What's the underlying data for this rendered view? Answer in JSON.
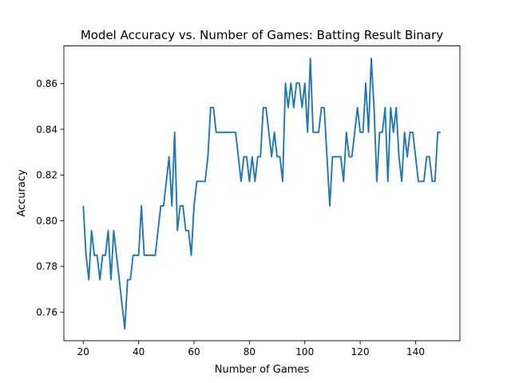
{
  "chart_data": {
    "type": "line",
    "title": "Model Accuracy vs. Number of Games: Batting Result Binary",
    "xlabel": "Number of Games",
    "ylabel": "Accuracy",
    "xlim": [
      13,
      156
    ],
    "ylim": [
      0.7475,
      0.8765
    ],
    "xticks": [
      20,
      40,
      60,
      80,
      100,
      120,
      140
    ],
    "yticks": [
      0.76,
      0.78,
      0.8,
      0.82,
      0.84,
      0.86
    ],
    "ytick_labels": [
      "0.76",
      "0.78",
      "0.80",
      "0.82",
      "0.84",
      "0.86"
    ],
    "grid": false,
    "line_color": "#1f77b4",
    "series": [
      {
        "x": [
          20,
          21,
          22,
          23,
          24,
          25,
          26,
          27,
          28,
          29,
          30,
          31,
          32,
          33,
          34,
          35,
          36,
          37,
          38,
          39,
          40,
          41,
          42,
          43,
          44,
          45,
          46,
          47,
          48,
          49,
          50,
          51,
          52,
          53,
          54,
          55,
          56,
          57,
          58,
          59,
          60,
          61,
          62,
          63,
          64,
          65,
          66,
          67,
          68,
          69,
          70,
          71,
          72,
          73,
          74,
          75,
          76,
          77,
          78,
          79,
          80,
          81,
          82,
          83,
          84,
          85,
          86,
          87,
          88,
          89,
          90,
          91,
          92,
          93,
          94,
          95,
          96,
          97,
          98,
          99,
          100,
          101,
          102,
          103,
          104,
          105,
          106,
          107,
          108,
          109,
          110,
          111,
          112,
          113,
          114,
          115,
          116,
          117,
          118,
          119,
          120,
          121,
          122,
          123,
          124,
          125,
          126,
          127,
          128,
          129,
          130,
          131,
          132,
          133,
          134,
          135,
          136,
          137,
          138,
          139,
          140,
          141,
          142,
          143,
          144,
          145,
          146,
          147,
          148,
          149
        ],
        "y": [
          0.8065,
          0.7849,
          0.7742,
          0.7957,
          0.7849,
          0.7849,
          0.7742,
          0.7849,
          0.7849,
          0.7957,
          0.7742,
          0.7957,
          0.7849,
          0.7742,
          0.7634,
          0.7527,
          0.7742,
          0.7742,
          0.7849,
          0.7849,
          0.7849,
          0.8065,
          0.7849,
          0.7849,
          0.7849,
          0.7849,
          0.7849,
          0.7957,
          0.8065,
          0.8065,
          0.8172,
          0.828,
          0.8065,
          0.8387,
          0.7957,
          0.8065,
          0.8065,
          0.7957,
          0.7957,
          0.7849,
          0.8065,
          0.8172,
          0.8172,
          0.8172,
          0.8172,
          0.828,
          0.8495,
          0.8495,
          0.8387,
          0.8387,
          0.8387,
          0.8387,
          0.8387,
          0.8387,
          0.8387,
          0.8387,
          0.828,
          0.8172,
          0.828,
          0.828,
          0.8172,
          0.828,
          0.8172,
          0.828,
          0.828,
          0.8495,
          0.8495,
          0.8387,
          0.828,
          0.8387,
          0.828,
          0.828,
          0.8172,
          0.8602,
          0.8495,
          0.8602,
          0.8495,
          0.8602,
          0.8602,
          0.8495,
          0.8602,
          0.8387,
          0.871,
          0.8387,
          0.8387,
          0.8387,
          0.8495,
          0.8495,
          0.828,
          0.8065,
          0.828,
          0.828,
          0.828,
          0.828,
          0.8172,
          0.8387,
          0.828,
          0.828,
          0.8387,
          0.8495,
          0.8387,
          0.8387,
          0.8602,
          0.8387,
          0.871,
          0.8495,
          0.8172,
          0.8387,
          0.8387,
          0.8495,
          0.8172,
          0.8495,
          0.8387,
          0.8495,
          0.828,
          0.8172,
          0.8387,
          0.828,
          0.8387,
          0.8387,
          0.828,
          0.8172,
          0.8172,
          0.8172,
          0.828,
          0.828,
          0.8172,
          0.8172,
          0.8387,
          0.8387
        ]
      }
    ]
  }
}
